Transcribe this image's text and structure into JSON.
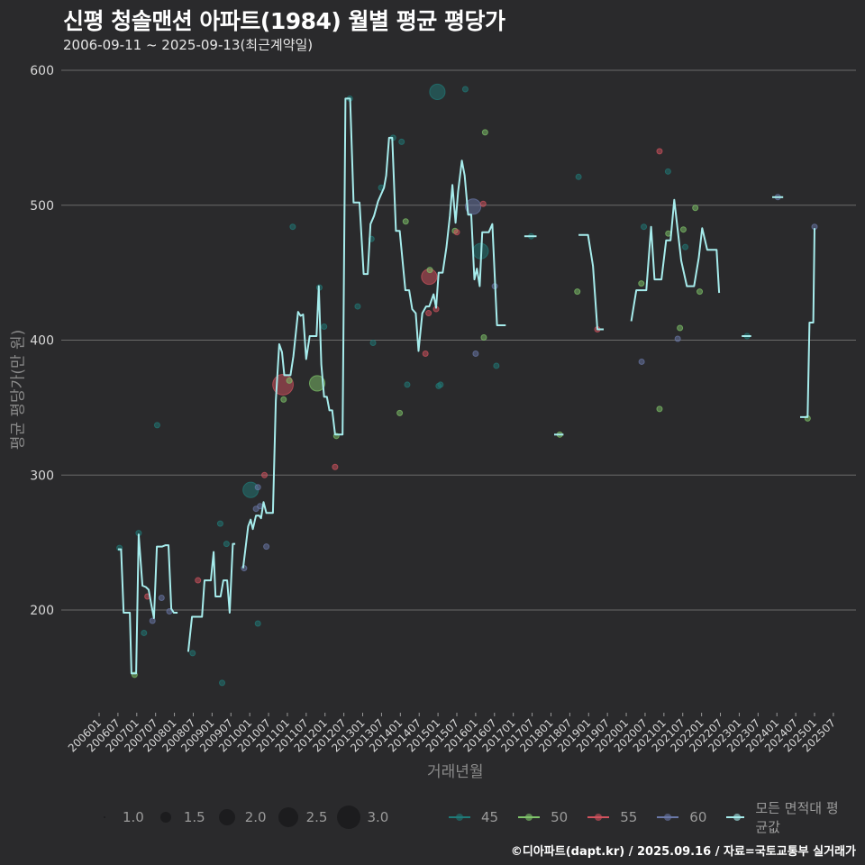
{
  "header": {
    "title": "신평 청솔맨션 아파트(1984) 월별 평균 평당가",
    "subtitle": "2006-09-11 ~ 2025-09-13(최근계약일)"
  },
  "footer": {
    "credit": "©디아파트(dapt.kr) / 2025.09.16 / 자료=국토교통부 실거래가"
  },
  "chart_data": {
    "type": "line",
    "title": "신평 청솔맨션 아파트(1984) 월별 평균 평당가",
    "subtitle": "2006-09-11 ~ 2025-09-13(최근계약일)",
    "xlabel": "거래년월",
    "ylabel": "평균 평당가(만 원)",
    "ylim": [
      135,
      610
    ],
    "yticks": [
      200,
      300,
      400,
      500,
      600
    ],
    "xticks": [
      "200601",
      "200607",
      "200701",
      "200707",
      "200801",
      "200807",
      "200901",
      "200907",
      "201001",
      "201007",
      "201101",
      "201107",
      "201201",
      "201207",
      "201301",
      "201307",
      "201401",
      "201407",
      "201501",
      "201507",
      "201601",
      "201607",
      "201701",
      "201707",
      "201801",
      "201807",
      "201901",
      "201907",
      "202001",
      "202007",
      "202101",
      "202107",
      "202201",
      "202207",
      "202301",
      "202307",
      "202401",
      "202407",
      "202501",
      "202507"
    ],
    "grid": true,
    "legend_position": "bottom",
    "size_legend": {
      "title": "",
      "values": [
        "1.0",
        "1.5",
        "2.0",
        "2.5",
        "3.0"
      ]
    },
    "color_legend": [
      {
        "name": "45",
        "color": "#1f7a78"
      },
      {
        "name": "50",
        "color": "#7fc46a"
      },
      {
        "name": "55",
        "color": "#d2525e"
      },
      {
        "name": "60",
        "color": "#6a78a8"
      },
      {
        "name": "모든 면적대 평균값",
        "color": "#a6ecec"
      }
    ],
    "line_series_name": "모든 면적대 평균값",
    "line_segments": [
      [
        [
          6,
          245
        ],
        [
          7,
          245
        ],
        [
          7.8,
          198
        ],
        [
          9.8,
          198
        ],
        [
          10.3,
          153
        ],
        [
          11.8,
          153
        ],
        [
          12.6,
          256
        ],
        [
          13.8,
          218
        ],
        [
          14.9,
          217
        ],
        [
          15.8,
          215
        ],
        [
          16.7,
          203
        ],
        [
          17.5,
          194
        ],
        [
          18.4,
          247
        ],
        [
          20.1,
          247
        ],
        [
          21.2,
          248
        ],
        [
          22.1,
          248
        ],
        [
          23,
          201
        ],
        [
          23.8,
          198
        ],
        [
          25,
          198
        ]
      ],
      [
        [
          28.4,
          169
        ],
        [
          29.6,
          195
        ],
        [
          32.8,
          195
        ],
        [
          33.6,
          222
        ],
        [
          35.6,
          222
        ],
        [
          36.5,
          243
        ],
        [
          37.1,
          210
        ],
        [
          38.7,
          210
        ],
        [
          39.6,
          222
        ],
        [
          40.8,
          222
        ],
        [
          41.6,
          198
        ],
        [
          42.6,
          249
        ],
        [
          43.4,
          249
        ]
      ],
      [
        [
          45.9,
          231
        ],
        [
          47.5,
          262
        ],
        [
          48.3,
          267
        ],
        [
          49,
          260
        ],
        [
          50,
          270
        ],
        [
          51,
          270
        ],
        [
          51.6,
          268
        ],
        [
          52.4,
          280
        ],
        [
          53.3,
          272
        ],
        [
          55.4,
          272
        ],
        [
          56.3,
          355
        ],
        [
          57.4,
          397
        ],
        [
          58.3,
          391
        ],
        [
          59,
          374
        ],
        [
          61,
          374
        ],
        [
          61.9,
          388
        ],
        [
          63.4,
          421
        ],
        [
          64.2,
          418
        ],
        [
          65,
          419
        ],
        [
          66,
          386
        ],
        [
          67.1,
          403
        ],
        [
          69.3,
          403
        ],
        [
          70,
          440
        ],
        [
          70.8,
          382
        ],
        [
          71.7,
          358
        ],
        [
          72.6,
          358
        ],
        [
          73.4,
          348
        ],
        [
          74.3,
          348
        ],
        [
          75.2,
          330
        ],
        [
          77.6,
          330
        ],
        [
          78.5,
          579
        ],
        [
          80,
          579
        ],
        [
          81.1,
          502
        ],
        [
          83,
          502
        ],
        [
          84.3,
          449
        ],
        [
          85.6,
          449
        ],
        [
          86.5,
          486
        ],
        [
          87.6,
          492
        ],
        [
          88.9,
          503
        ],
        [
          90.8,
          513
        ],
        [
          91.5,
          522
        ],
        [
          92.4,
          550
        ],
        [
          93.4,
          550
        ],
        [
          94.6,
          481
        ],
        [
          95.8,
          481
        ],
        [
          97.6,
          437
        ],
        [
          98.8,
          437
        ],
        [
          99.8,
          423
        ],
        [
          100.9,
          420
        ],
        [
          101.8,
          392
        ],
        [
          103,
          420
        ],
        [
          104.2,
          425
        ],
        [
          105.2,
          425
        ],
        [
          106.6,
          434
        ],
        [
          107.4,
          424
        ],
        [
          108.2,
          450
        ],
        [
          109.5,
          450
        ],
        [
          110.7,
          469
        ],
        [
          111.8,
          492
        ],
        [
          112.6,
          515
        ],
        [
          113.6,
          487
        ],
        [
          114.4,
          510
        ],
        [
          115.6,
          533
        ],
        [
          116.5,
          522
        ],
        [
          117.6,
          493
        ],
        [
          118.6,
          493
        ],
        [
          119.6,
          445
        ],
        [
          120.4,
          453
        ],
        [
          121.3,
          440
        ],
        [
          122.1,
          480
        ],
        [
          124.2,
          480
        ],
        [
          125.3,
          486
        ],
        [
          126.8,
          411
        ],
        [
          129.6,
          411
        ]
      ],
      [
        [
          135.5,
          477
        ],
        [
          139.4,
          477
        ]
      ],
      [
        [
          145,
          330
        ],
        [
          148,
          330
        ]
      ],
      [
        [
          152.8,
          478
        ],
        [
          155.8,
          478
        ],
        [
          157.4,
          455
        ],
        [
          158.8,
          408
        ],
        [
          160.8,
          408
        ]
      ],
      [
        [
          169.6,
          414
        ],
        [
          171.2,
          437
        ],
        [
          174.4,
          437
        ],
        [
          175.9,
          484
        ],
        [
          177,
          445
        ],
        [
          179.2,
          445
        ],
        [
          180.7,
          474
        ],
        [
          182.1,
          474
        ],
        [
          183.3,
          504
        ],
        [
          185.5,
          459
        ],
        [
          187.3,
          440
        ],
        [
          189.6,
          440
        ],
        [
          191.1,
          461
        ],
        [
          192.2,
          483
        ],
        [
          193.8,
          467
        ],
        [
          196.8,
          467
        ],
        [
          197.6,
          435
        ]
      ],
      [
        [
          204.8,
          403
        ],
        [
          207.8,
          403
        ]
      ],
      [
        [
          214.5,
          506
        ],
        [
          218,
          506
        ]
      ],
      [
        [
          223.4,
          343
        ],
        [
          225.8,
          343
        ],
        [
          226.4,
          413
        ],
        [
          227.6,
          413
        ],
        [
          228,
          483
        ]
      ]
    ],
    "scatter_points": [
      {
        "m": 6.5,
        "v": 246,
        "s": 1,
        "area": "45"
      },
      {
        "m": 11.3,
        "v": 152,
        "s": 1,
        "area": "50"
      },
      {
        "m": 12.6,
        "v": 257,
        "s": 1,
        "area": "45"
      },
      {
        "m": 14.3,
        "v": 183,
        "s": 1,
        "area": "45"
      },
      {
        "m": 15.4,
        "v": 210,
        "s": 1,
        "area": "55"
      },
      {
        "m": 17,
        "v": 192,
        "s": 1,
        "area": "60"
      },
      {
        "m": 18.5,
        "v": 337,
        "s": 1,
        "area": "45"
      },
      {
        "m": 19.9,
        "v": 209,
        "s": 1,
        "area": "60"
      },
      {
        "m": 22.4,
        "v": 199,
        "s": 1,
        "area": "60"
      },
      {
        "m": 29.8,
        "v": 168,
        "s": 1,
        "area": "45"
      },
      {
        "m": 31.5,
        "v": 222,
        "s": 1,
        "area": "55"
      },
      {
        "m": 38.6,
        "v": 264,
        "s": 1,
        "area": "45"
      },
      {
        "m": 39.2,
        "v": 146,
        "s": 1,
        "area": "45"
      },
      {
        "m": 40.6,
        "v": 249,
        "s": 1,
        "area": "45"
      },
      {
        "m": 46.2,
        "v": 231,
        "s": 1,
        "area": "60"
      },
      {
        "m": 48.3,
        "v": 289,
        "s": 2,
        "area": "45"
      },
      {
        "m": 50,
        "v": 275,
        "s": 1,
        "area": "60"
      },
      {
        "m": 50.6,
        "v": 291,
        "s": 1,
        "area": "60"
      },
      {
        "m": 50.6,
        "v": 190,
        "s": 1,
        "area": "45"
      },
      {
        "m": 51.3,
        "v": 277,
        "s": 1,
        "area": "60"
      },
      {
        "m": 52.7,
        "v": 300,
        "s": 1,
        "area": "55"
      },
      {
        "m": 53.3,
        "v": 247,
        "s": 1,
        "area": "60"
      },
      {
        "m": 58.6,
        "v": 367,
        "s": 3,
        "area": "55"
      },
      {
        "m": 58.8,
        "v": 356,
        "s": 1,
        "area": "50"
      },
      {
        "m": 60.6,
        "v": 370,
        "s": 1,
        "area": "50"
      },
      {
        "m": 61.7,
        "v": 484,
        "s": 1,
        "area": "45"
      },
      {
        "m": 70.2,
        "v": 439,
        "s": 1,
        "area": "45"
      },
      {
        "m": 69.5,
        "v": 368,
        "s": 2,
        "area": "50"
      },
      {
        "m": 71.7,
        "v": 410,
        "s": 1,
        "area": "45"
      },
      {
        "m": 75.6,
        "v": 329,
        "s": 1,
        "area": "50"
      },
      {
        "m": 75.2,
        "v": 306,
        "s": 1,
        "area": "55"
      },
      {
        "m": 79.9,
        "v": 579,
        "s": 1,
        "area": "45"
      },
      {
        "m": 82.4,
        "v": 425,
        "s": 1,
        "area": "45"
      },
      {
        "m": 86.8,
        "v": 475,
        "s": 1,
        "area": "45"
      },
      {
        "m": 87.3,
        "v": 398,
        "s": 1,
        "area": "45"
      },
      {
        "m": 89.9,
        "v": 513,
        "s": 1,
        "area": "45"
      },
      {
        "m": 93.7,
        "v": 550,
        "s": 1,
        "area": "45"
      },
      {
        "m": 95.8,
        "v": 346,
        "s": 1,
        "area": "50"
      },
      {
        "m": 96.4,
        "v": 547,
        "s": 1,
        "area": "45"
      },
      {
        "m": 97.7,
        "v": 488,
        "s": 1,
        "area": "50"
      },
      {
        "m": 98.2,
        "v": 367,
        "s": 1,
        "area": "45"
      },
      {
        "m": 104,
        "v": 390,
        "s": 1,
        "area": "55"
      },
      {
        "m": 105,
        "v": 420,
        "s": 1,
        "area": "55"
      },
      {
        "m": 105.2,
        "v": 447,
        "s": 2,
        "area": "55"
      },
      {
        "m": 105.4,
        "v": 452,
        "s": 1,
        "area": "50"
      },
      {
        "m": 107.4,
        "v": 423,
        "s": 1,
        "area": "55"
      },
      {
        "m": 108.2,
        "v": 366,
        "s": 1,
        "area": "45"
      },
      {
        "m": 108.8,
        "v": 367,
        "s": 1,
        "area": "45"
      },
      {
        "m": 107.8,
        "v": 584,
        "s": 2,
        "area": "45"
      },
      {
        "m": 113.4,
        "v": 481,
        "s": 1,
        "area": "50"
      },
      {
        "m": 114,
        "v": 480,
        "s": 1,
        "area": "55"
      },
      {
        "m": 116.7,
        "v": 586,
        "s": 1,
        "area": "45"
      },
      {
        "m": 119.2,
        "v": 499,
        "s": 2,
        "area": "60"
      },
      {
        "m": 120,
        "v": 390,
        "s": 1,
        "area": "60"
      },
      {
        "m": 121.6,
        "v": 466,
        "s": 2,
        "area": "45"
      },
      {
        "m": 122.4,
        "v": 501,
        "s": 1,
        "area": "55"
      },
      {
        "m": 122.6,
        "v": 402,
        "s": 1,
        "area": "50"
      },
      {
        "m": 123,
        "v": 554,
        "s": 1,
        "area": "50"
      },
      {
        "m": 126.1,
        "v": 440,
        "s": 1,
        "area": "60"
      },
      {
        "m": 126.6,
        "v": 381,
        "s": 1,
        "area": "45"
      },
      {
        "m": 137.7,
        "v": 477,
        "s": 1,
        "area": "45"
      },
      {
        "m": 146.8,
        "v": 330,
        "s": 1,
        "area": "50"
      },
      {
        "m": 152.4,
        "v": 436,
        "s": 1,
        "area": "50"
      },
      {
        "m": 152.8,
        "v": 521,
        "s": 1,
        "area": "45"
      },
      {
        "m": 158.8,
        "v": 408,
        "s": 1,
        "area": "55"
      },
      {
        "m": 172.9,
        "v": 384,
        "s": 1,
        "area": "60"
      },
      {
        "m": 172.8,
        "v": 442,
        "s": 1,
        "area": "50"
      },
      {
        "m": 173.6,
        "v": 484,
        "s": 1,
        "area": "45"
      },
      {
        "m": 178.6,
        "v": 540,
        "s": 1,
        "area": "55"
      },
      {
        "m": 178.6,
        "v": 349,
        "s": 1,
        "area": "50"
      },
      {
        "m": 181.3,
        "v": 525,
        "s": 1,
        "area": "45"
      },
      {
        "m": 181.4,
        "v": 479,
        "s": 1,
        "area": "50"
      },
      {
        "m": 184.4,
        "v": 401,
        "s": 1,
        "area": "60"
      },
      {
        "m": 185.1,
        "v": 409,
        "s": 1,
        "area": "50"
      },
      {
        "m": 186.2,
        "v": 482,
        "s": 1,
        "area": "50"
      },
      {
        "m": 186.8,
        "v": 469,
        "s": 1,
        "area": "45"
      },
      {
        "m": 190,
        "v": 498,
        "s": 1,
        "area": "50"
      },
      {
        "m": 191.4,
        "v": 436,
        "s": 1,
        "area": "50"
      },
      {
        "m": 206.5,
        "v": 403,
        "s": 1,
        "area": "45"
      },
      {
        "m": 216.3,
        "v": 506,
        "s": 1,
        "area": "60"
      },
      {
        "m": 225.8,
        "v": 342,
        "s": 1,
        "area": "50"
      },
      {
        "m": 228,
        "v": 484,
        "s": 1,
        "area": "60"
      }
    ]
  }
}
